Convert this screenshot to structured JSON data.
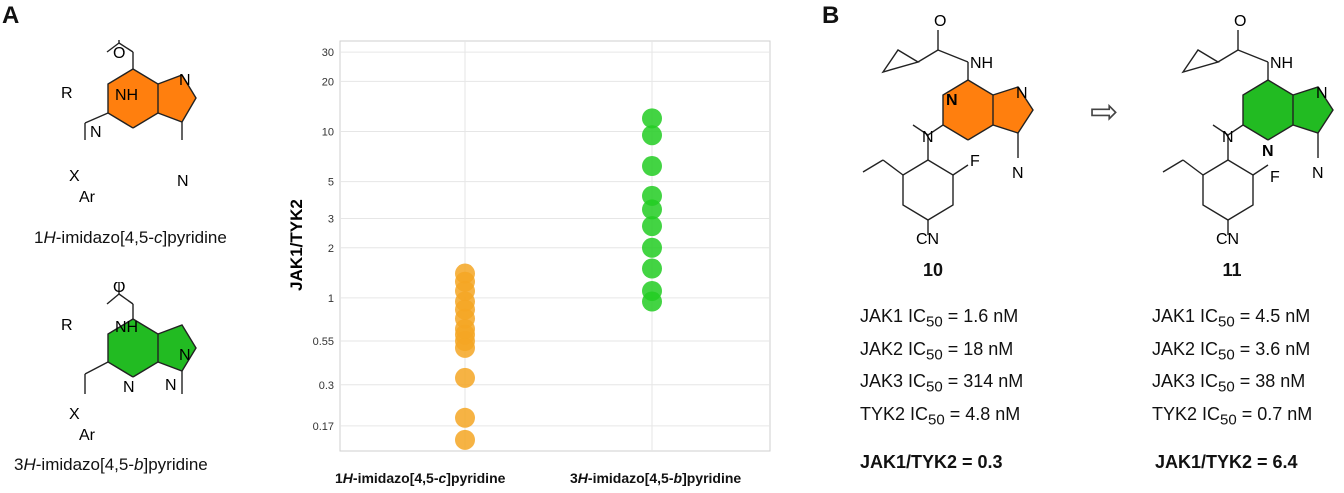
{
  "panel_a": {
    "letter": "A",
    "scaffold_c": {
      "name_pre": "1",
      "name_ital": "H",
      "name_mid": "-imidazo[4,5-",
      "name_ital2": "c",
      "name_post": "]pyridine",
      "label_r": "R",
      "label_o": "O",
      "label_nh": "NH",
      "label_n1": "N",
      "label_n2": "N",
      "label_n3": "N",
      "label_x": "X",
      "label_ar": "Ar",
      "color": "#ff7f0e"
    },
    "scaffold_b": {
      "name_pre": "3",
      "name_ital": "H",
      "name_mid": "-imidazo[4,5-",
      "name_ital2": "b",
      "name_post": "]pyridine",
      "label_r": "R",
      "label_o": "O",
      "label_nh": "NH",
      "label_n1": "N",
      "label_n2": "N",
      "label_n3": "N",
      "label_x": "X",
      "label_ar": "Ar",
      "color": "#22bb22"
    }
  },
  "chart_data": {
    "type": "scatter",
    "ylabel": "JAK1/TYK2",
    "yscale": "log",
    "ylim": [
      0.12,
      35
    ],
    "yticks": [
      "30",
      "20",
      "10",
      "5",
      "3",
      "2",
      "1",
      "0.55",
      "0.3",
      "0.17"
    ],
    "ytick_values": [
      30,
      20,
      10,
      5,
      3,
      2,
      1,
      0.55,
      0.3,
      0.17
    ],
    "categories": [
      {
        "pre": "1",
        "ital": "H",
        "mid": "-imidazo[4,5-",
        "ital2": "c",
        "post": "]pyridine"
      },
      {
        "pre": "3",
        "ital": "H",
        "mid": "-imidazo[4,5-",
        "ital2": "b",
        "post": "]pyridine"
      }
    ],
    "series": [
      {
        "name": "1H-imidazo[4,5-c]pyridine",
        "color": "#f5a623",
        "values": [
          1.4,
          1.25,
          1.1,
          0.95,
          0.85,
          0.75,
          0.65,
          0.6,
          0.55,
          0.5,
          0.33,
          0.19,
          0.14
        ]
      },
      {
        "name": "3H-imidazo[4,5-b]pyridine",
        "color": "#22cc22",
        "values": [
          12,
          9.5,
          6.2,
          4.1,
          3.4,
          2.7,
          2.0,
          1.5,
          1.1,
          0.95
        ]
      }
    ],
    "grid": true
  },
  "panel_b": {
    "letter": "B",
    "arrow": "⇨",
    "compounds": [
      {
        "id": "10",
        "ring_color": "#ff7f0e",
        "labels": {
          "o": "O",
          "nh": "NH",
          "n1": "N",
          "n2": "N",
          "n3": "N",
          "n4": "N",
          "f": "F",
          "cn": "CN"
        },
        "ic50": [
          {
            "target": "JAK1 IC",
            "sub": "50",
            "value": " = 1.6 nM"
          },
          {
            "target": "JAK2 IC",
            "sub": "50",
            "value": " = 18 nM"
          },
          {
            "target": "JAK3 IC",
            "sub": "50",
            "value": " = 314 nM"
          },
          {
            "target": "TYK2 IC",
            "sub": "50",
            "value": " = 4.8 nM"
          }
        ],
        "ratio": "JAK1/TYK2 = 0.3"
      },
      {
        "id": "11",
        "ring_color": "#22bb22",
        "labels": {
          "o": "O",
          "nh": "NH",
          "n1": "N",
          "n2": "N",
          "n3": "N",
          "n4": "N",
          "f": "F",
          "cn": "CN"
        },
        "ic50": [
          {
            "target": "JAK1 IC",
            "sub": "50",
            "value": " = 4.5 nM"
          },
          {
            "target": "JAK2 IC",
            "sub": "50",
            "value": " = 3.6 nM"
          },
          {
            "target": "JAK3 IC",
            "sub": "50",
            "value": " = 38 nM"
          },
          {
            "target": "TYK2 IC",
            "sub": "50",
            "value": " = 0.7 nM"
          }
        ],
        "ratio": "JAK1/TYK2 = 6.4"
      }
    ]
  }
}
